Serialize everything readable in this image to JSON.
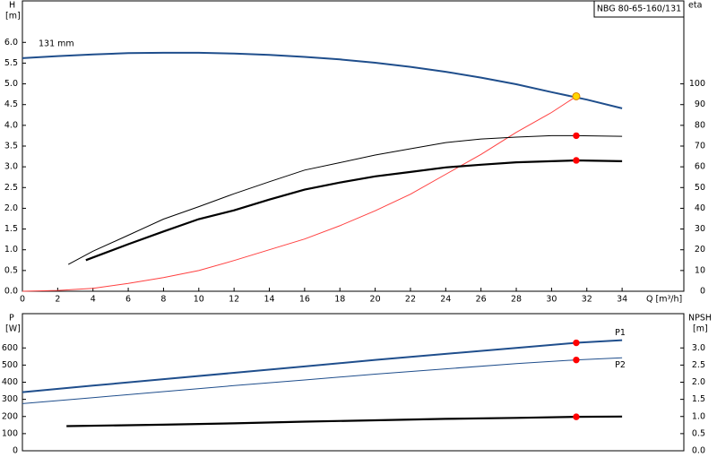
{
  "chart_data": [
    {
      "type": "line",
      "title": "NBG 80-65-160/131",
      "x_label": "Q [m³/h]",
      "y_label": "H",
      "y_unit": "[m]",
      "y2_label": "eta",
      "xlim": [
        0,
        37.5
      ],
      "ylim": [
        0,
        7
      ],
      "y2lim": [
        0,
        140
      ],
      "xticks": [
        0,
        2,
        4,
        6,
        8,
        10,
        12,
        14,
        16,
        18,
        20,
        22,
        24,
        26,
        28,
        30,
        32,
        34
      ],
      "yticks": [
        {
          "value": 0,
          "label": "0.0"
        },
        0.5,
        {
          "value": 1,
          "label": "1.0"
        },
        1.5,
        {
          "value": 2,
          "label": "2.0"
        },
        2.5,
        {
          "value": 3,
          "label": "3.0"
        },
        3.5,
        {
          "value": 4,
          "label": "4.0"
        },
        4.5,
        {
          "value": 5,
          "label": "5.0"
        },
        5.5,
        {
          "value": 6,
          "label": "6.0"
        }
      ],
      "y2ticks": [
        0,
        10,
        20,
        30,
        40,
        50,
        60,
        70,
        80,
        90,
        100
      ],
      "series": [
        {
          "name": "131 mm",
          "color": "#1f4e8c",
          "style": "line",
          "width": 2,
          "x": [
            0,
            2,
            4,
            6,
            8,
            10,
            12,
            14,
            16,
            18,
            20,
            22,
            24,
            26,
            28,
            30,
            32,
            34
          ],
          "values": [
            5.62,
            5.67,
            5.71,
            5.74,
            5.75,
            5.75,
            5.73,
            5.7,
            5.65,
            5.59,
            5.51,
            5.41,
            5.29,
            5.15,
            4.99,
            4.8,
            4.62,
            4.41
          ]
        },
        {
          "color": "#ff4040",
          "style": "line",
          "width": 1,
          "x": [
            0,
            2,
            4,
            6,
            8,
            10,
            12,
            14,
            16,
            18,
            20,
            22,
            24,
            26,
            28,
            30,
            31.4
          ],
          "values": [
            0,
            0.02,
            0.07,
            0.19,
            0.33,
            0.5,
            0.74,
            1.0,
            1.26,
            1.58,
            1.94,
            2.34,
            2.82,
            3.3,
            3.83,
            4.31,
            4.7
          ]
        },
        {
          "color": "#000000",
          "style": "line",
          "width": 1,
          "axis": "y2",
          "x": [
            2.6,
            4,
            6,
            8,
            10,
            12,
            14,
            16,
            18,
            20,
            22,
            24,
            26,
            28,
            30,
            31.4,
            34
          ],
          "values": [
            12.9,
            19.3,
            27,
            34.8,
            40.8,
            47,
            52.8,
            58.4,
            62,
            65.7,
            68.7,
            71.7,
            73.4,
            74.3,
            75,
            75,
            74.7
          ]
        },
        {
          "color": "#000000",
          "style": "line",
          "width": 2.2,
          "axis": "y2",
          "x": [
            3.6,
            4,
            6,
            8,
            10,
            12,
            14,
            16,
            18,
            20,
            22,
            24,
            26,
            28,
            30,
            31.4,
            34
          ],
          "values": [
            15,
            16.3,
            22.7,
            28.8,
            34.8,
            39,
            44.2,
            49,
            52.4,
            55.4,
            57.5,
            59.7,
            61,
            62.2,
            62.7,
            63.1,
            62.7
          ]
        },
        {
          "color": "#ff0000",
          "style": "points",
          "axis": "y2",
          "x": [
            31.4,
            31.4
          ],
          "values": [
            75,
            63.1
          ]
        },
        {
          "color": "#ffd700",
          "style": "points",
          "x": [
            31.4
          ],
          "values": [
            4.7
          ]
        }
      ]
    },
    {
      "type": "line",
      "y_label": "P",
      "y_unit": "[W]",
      "y2_label": "NPSH",
      "y2_unit": "[m]",
      "xlim": [
        0,
        37.5
      ],
      "ylim": [
        0,
        800
      ],
      "y2lim": [
        0,
        4
      ],
      "yticks": [
        0,
        100,
        200,
        300,
        400,
        500,
        600
      ],
      "y2ticks": [
        {
          "value": 0,
          "label": "0.0"
        },
        0.5,
        {
          "value": 1,
          "label": "1.0"
        },
        1.5,
        {
          "value": 2,
          "label": "2.0"
        },
        2.5,
        {
          "value": 3,
          "label": "3.0"
        }
      ],
      "series": [
        {
          "name": "P1",
          "color": "#1f4e8c",
          "style": "line",
          "width": 2,
          "x": [
            0,
            4,
            8,
            12,
            16,
            20,
            24,
            28,
            31.4,
            34
          ],
          "values": [
            342,
            380,
            418,
            455,
            492,
            530,
            565,
            600,
            630,
            645
          ]
        },
        {
          "name": "P2",
          "color": "#1f4e8c",
          "style": "line",
          "width": 1,
          "x": [
            0,
            4,
            8,
            12,
            16,
            20,
            24,
            28,
            31.4,
            34
          ],
          "values": [
            275,
            310,
            345,
            380,
            413,
            447,
            478,
            508,
            530,
            542
          ]
        },
        {
          "color": "#000000",
          "style": "line",
          "width": 2.2,
          "axis": "y2",
          "x": [
            2.5,
            8,
            12,
            16,
            20,
            24,
            28,
            31.4,
            34
          ],
          "values": [
            0.72,
            0.76,
            0.8,
            0.85,
            0.89,
            0.93,
            0.96,
            0.99,
            1.0
          ]
        },
        {
          "color": "#ff0000",
          "style": "points",
          "x": [
            31.4,
            31.4
          ],
          "values": [
            630,
            530
          ]
        },
        {
          "color": "#ff0000",
          "style": "points",
          "axis": "y2",
          "x": [
            31.4
          ],
          "values": [
            0.99
          ]
        }
      ]
    }
  ]
}
